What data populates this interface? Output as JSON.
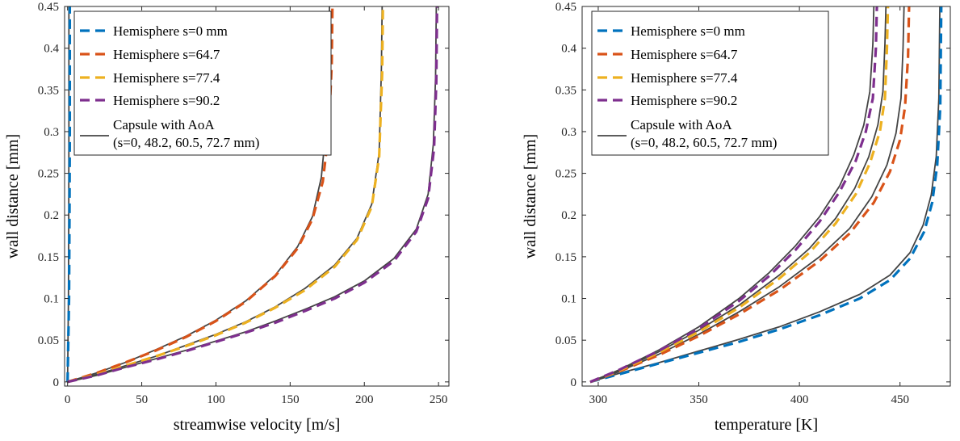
{
  "chart_data": [
    {
      "type": "line",
      "xlabel": "streamwise velocity [m/s]",
      "ylabel": "wall distance [mm]",
      "xlim": [
        -2,
        257
      ],
      "ylim": [
        -0.005,
        0.45
      ],
      "xticks": [
        0,
        50,
        100,
        150,
        200,
        250
      ],
      "yticks": [
        0,
        0.05,
        0.1,
        0.15,
        0.2,
        0.25,
        0.3,
        0.35,
        0.4,
        0.45
      ],
      "grid": false,
      "legend_placement": "top-left",
      "series": [
        {
          "name": "Hemisphere s=0 mm",
          "color": "#0072BD",
          "style": "dashed",
          "x": [
            0,
            0.5,
            1,
            1.3,
            1.5,
            1.5
          ],
          "y": [
            0,
            0.05,
            0.1,
            0.2,
            0.3,
            0.45
          ]
        },
        {
          "name": "Hemisphere s=64.7",
          "color": "#D95319",
          "style": "dashed",
          "x": [
            0,
            20,
            40,
            60,
            80,
            100,
            120,
            140,
            155,
            165,
            172,
            176,
            178,
            178.5
          ],
          "y": [
            0,
            0.011,
            0.024,
            0.038,
            0.054,
            0.073,
            0.096,
            0.127,
            0.16,
            0.195,
            0.24,
            0.3,
            0.38,
            0.45
          ]
        },
        {
          "name": "Hemisphere s=77.4",
          "color": "#EDB120",
          "style": "dashed",
          "x": [
            0,
            20,
            40,
            60,
            80,
            100,
            120,
            140,
            160,
            180,
            195,
            205,
            210,
            212,
            212.5
          ],
          "y": [
            0,
            0.009,
            0.02,
            0.031,
            0.043,
            0.056,
            0.071,
            0.089,
            0.11,
            0.138,
            0.17,
            0.21,
            0.27,
            0.37,
            0.45
          ]
        },
        {
          "name": "Hemisphere s=90.2",
          "color": "#7E2F8E",
          "style": "dashed",
          "x": [
            0,
            20,
            40,
            60,
            80,
            100,
            120,
            140,
            160,
            180,
            200,
            220,
            235,
            243,
            247,
            248.5,
            249
          ],
          "y": [
            0,
            0.008,
            0.018,
            0.027,
            0.037,
            0.048,
            0.059,
            0.071,
            0.085,
            0.1,
            0.119,
            0.145,
            0.18,
            0.22,
            0.28,
            0.36,
            0.45
          ]
        },
        {
          "name": "Capsule with AoA (s=0, 48.2, 60.5, 72.7 mm)",
          "color": "#444444",
          "style": "solid",
          "x": [
            0,
            0.3,
            0.6,
            0.8,
            0.9,
            0.9
          ],
          "y": [
            0,
            0.05,
            0.1,
            0.2,
            0.3,
            0.45
          ]
        },
        {
          "name": "",
          "color": "#444444",
          "style": "solid",
          "x": [
            0,
            20,
            40,
            60,
            80,
            100,
            120,
            140,
            155,
            165,
            171,
            174.5,
            176,
            176.5
          ],
          "y": [
            0,
            0.011,
            0.024,
            0.039,
            0.055,
            0.074,
            0.097,
            0.128,
            0.162,
            0.198,
            0.245,
            0.31,
            0.39,
            0.45
          ]
        },
        {
          "name": "",
          "color": "#444444",
          "style": "solid",
          "x": [
            0,
            20,
            40,
            60,
            80,
            100,
            120,
            140,
            160,
            180,
            195,
            205,
            210,
            211.5,
            212
          ],
          "y": [
            0,
            0.009,
            0.02,
            0.031,
            0.044,
            0.057,
            0.072,
            0.09,
            0.112,
            0.14,
            0.172,
            0.213,
            0.275,
            0.375,
            0.45
          ]
        },
        {
          "name": "",
          "color": "#444444",
          "style": "solid",
          "x": [
            0,
            20,
            40,
            60,
            80,
            100,
            120,
            140,
            160,
            180,
            200,
            220,
            235,
            243,
            246.5,
            248,
            248.5
          ],
          "y": [
            0,
            0.008,
            0.018,
            0.028,
            0.038,
            0.049,
            0.06,
            0.073,
            0.087,
            0.102,
            0.121,
            0.148,
            0.183,
            0.225,
            0.285,
            0.365,
            0.45
          ]
        }
      ]
    },
    {
      "type": "line",
      "xlabel": "temperature [K]",
      "ylabel": "wall distance [mm]",
      "xlim": [
        292,
        475
      ],
      "ylim": [
        -0.005,
        0.45
      ],
      "xticks": [
        300,
        350,
        400,
        450
      ],
      "yticks": [
        0,
        0.05,
        0.1,
        0.15,
        0.2,
        0.25,
        0.3,
        0.35,
        0.4,
        0.45
      ],
      "grid": false,
      "legend_placement": "top-left",
      "series": [
        {
          "name": "Hemisphere s=0 mm",
          "color": "#0072BD",
          "style": "dashed",
          "x": [
            296,
            310,
            330,
            350,
            370,
            390,
            410,
            430,
            445,
            455,
            462,
            466,
            468.5,
            470,
            470.5
          ],
          "y": [
            0,
            0.009,
            0.022,
            0.035,
            0.048,
            0.063,
            0.08,
            0.1,
            0.122,
            0.148,
            0.18,
            0.215,
            0.26,
            0.33,
            0.45
          ]
        },
        {
          "name": "Hemisphere s=64.7",
          "color": "#D95319",
          "style": "dashed",
          "x": [
            296,
            310,
            330,
            350,
            370,
            390,
            410,
            425,
            437,
            445,
            450,
            452.5,
            454,
            454.5
          ],
          "y": [
            0,
            0.012,
            0.032,
            0.055,
            0.081,
            0.11,
            0.145,
            0.178,
            0.215,
            0.252,
            0.29,
            0.33,
            0.39,
            0.45
          ]
        },
        {
          "name": "Hemisphere s=77.4",
          "color": "#EDB120",
          "style": "dashed",
          "x": [
            296,
            310,
            330,
            350,
            370,
            390,
            405,
            418,
            428,
            435,
            440,
            442.5,
            443.5,
            444
          ],
          "y": [
            0,
            0.013,
            0.035,
            0.06,
            0.089,
            0.124,
            0.155,
            0.19,
            0.225,
            0.262,
            0.3,
            0.34,
            0.4,
            0.45
          ]
        },
        {
          "name": "Hemisphere s=90.2",
          "color": "#7E2F8E",
          "style": "dashed",
          "x": [
            296,
            310,
            330,
            350,
            370,
            385,
            398,
            410,
            420,
            428,
            433,
            436.5,
            438,
            438.5
          ],
          "y": [
            0,
            0.014,
            0.037,
            0.064,
            0.097,
            0.127,
            0.158,
            0.192,
            0.228,
            0.265,
            0.3,
            0.34,
            0.4,
            0.45
          ]
        },
        {
          "name": "Capsule with AoA (s=0, 48.2, 60.5, 72.7 mm)",
          "color": "#444444",
          "style": "solid",
          "x": [
            296,
            310,
            330,
            350,
            370,
            390,
            410,
            430,
            445,
            455,
            461.5,
            465.5,
            468,
            469.3,
            469.8
          ],
          "y": [
            0,
            0.01,
            0.023,
            0.037,
            0.051,
            0.066,
            0.084,
            0.105,
            0.128,
            0.155,
            0.188,
            0.224,
            0.27,
            0.34,
            0.45
          ]
        },
        {
          "name": "",
          "color": "#444444",
          "style": "solid",
          "x": [
            296,
            310,
            330,
            350,
            370,
            390,
            410,
            425,
            436,
            443.5,
            448,
            450.5,
            451.5,
            452
          ],
          "y": [
            0,
            0.012,
            0.033,
            0.057,
            0.084,
            0.114,
            0.15,
            0.184,
            0.222,
            0.26,
            0.298,
            0.34,
            0.4,
            0.45
          ]
        },
        {
          "name": "",
          "color": "#444444",
          "style": "solid",
          "x": [
            296,
            310,
            330,
            350,
            370,
            390,
            405,
            418,
            427.5,
            434.5,
            439,
            441.5,
            442.5,
            443
          ],
          "y": [
            0,
            0.013,
            0.036,
            0.062,
            0.092,
            0.128,
            0.16,
            0.196,
            0.232,
            0.27,
            0.308,
            0.348,
            0.405,
            0.45
          ]
        },
        {
          "name": "",
          "color": "#444444",
          "style": "solid",
          "x": [
            296,
            310,
            330,
            350,
            370,
            385,
            398,
            410,
            420,
            427,
            432,
            435,
            436.5,
            437
          ],
          "y": [
            0,
            0.014,
            0.038,
            0.066,
            0.1,
            0.131,
            0.163,
            0.198,
            0.235,
            0.272,
            0.308,
            0.348,
            0.405,
            0.45
          ]
        }
      ]
    }
  ]
}
